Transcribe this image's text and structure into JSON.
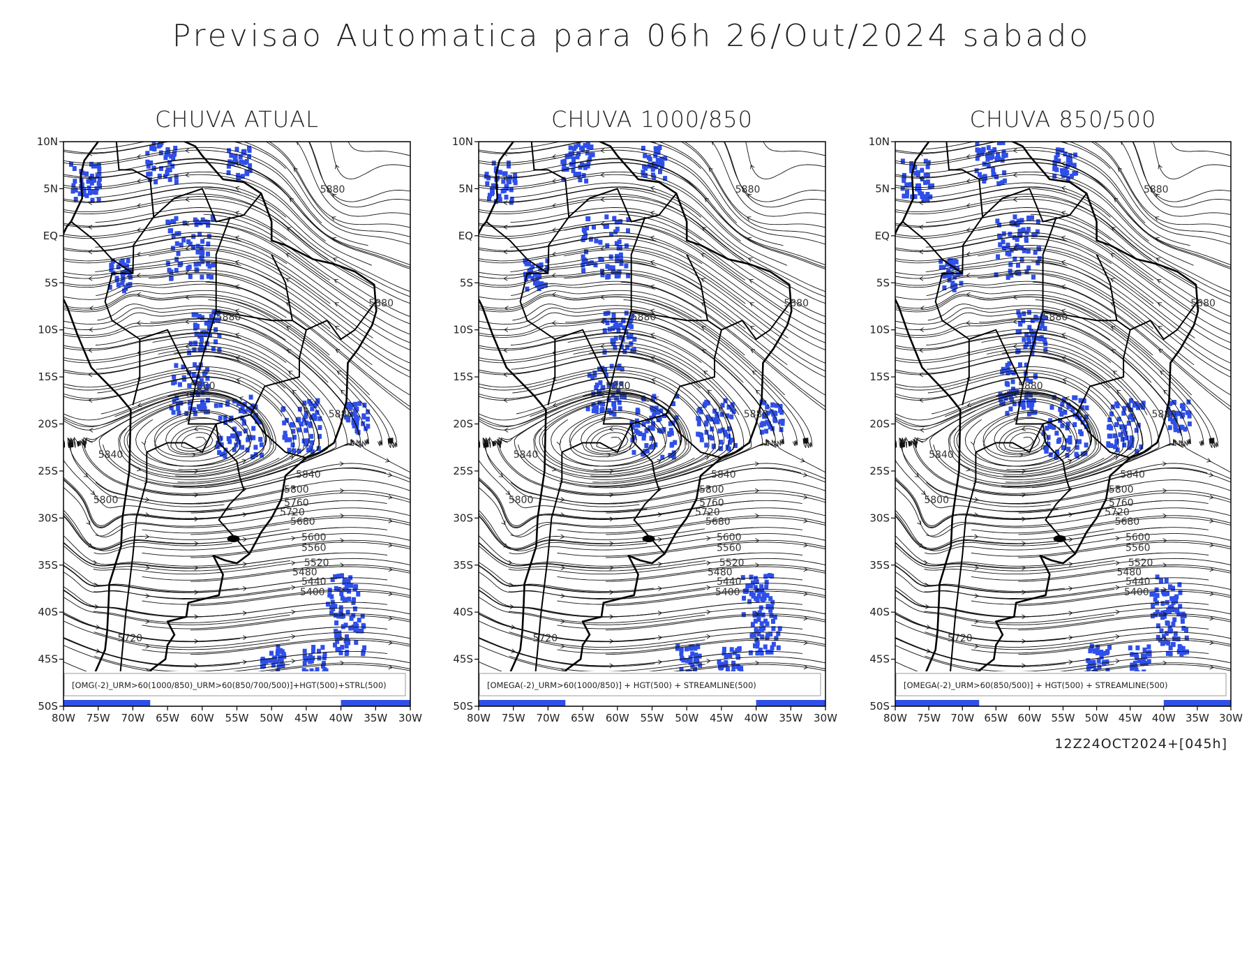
{
  "title": "Previsao Automatica para 06h 26/Out/2024 sabado",
  "panels": [
    {
      "title": "CHUVA ATUAL",
      "legend": "[OMG(-2)_URM>60(1000/850)_URM>60(850/700/500)]+HGT(500)+STRL(500)"
    },
    {
      "title": "CHUVA 1000/850",
      "legend": "[OMEGA(-2)_URM>60(1000/850)] + HGT(500) + STREAMLINE(500)"
    },
    {
      "title": "CHUVA 850/500",
      "legend": "[OMEGA(-2)_URM>60(850/500)] + HGT(500) + STREAMLINE(500)"
    }
  ],
  "lat_labels": [
    "10N",
    "5N",
    "EQ",
    "5S",
    "10S",
    "15S",
    "20S",
    "25S",
    "30S",
    "35S",
    "40S",
    "45S",
    "50S"
  ],
  "lon_labels": [
    "80W",
    "75W",
    "70W",
    "65W",
    "60W",
    "55W",
    "50W",
    "45W",
    "40W",
    "35W",
    "30W"
  ],
  "contour_labels": [
    "5880",
    "5880",
    "5880",
    "5880",
    "5880",
    "5840",
    "5840",
    "5800",
    "5800",
    "5760",
    "5720",
    "5680",
    "5600",
    "5560",
    "5520",
    "5480",
    "5440",
    "5400",
    "5720"
  ],
  "footer": "12Z24OCT2024+[045h]"
}
